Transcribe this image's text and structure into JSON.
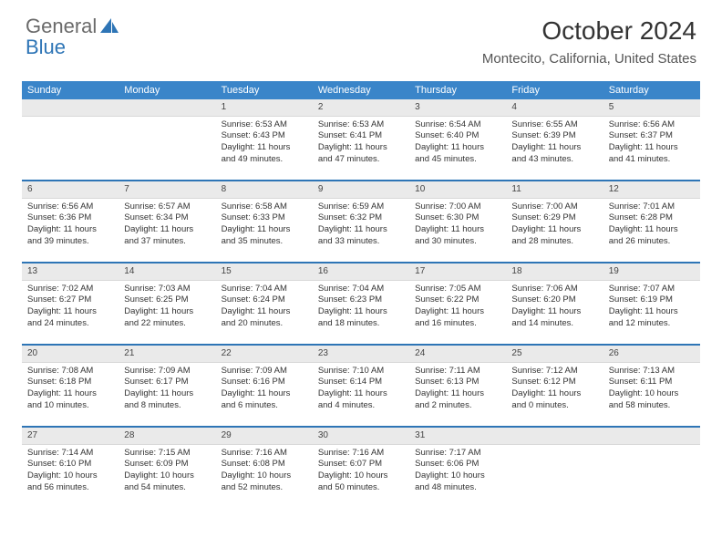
{
  "logo": {
    "grey": "General",
    "blue": "Blue"
  },
  "title": "October 2024",
  "location": "Montecito, California, United States",
  "colors": {
    "header_bg": "#3a85c9",
    "header_text": "#ffffff",
    "week_border": "#2e75b6",
    "daynum_bg": "#eaeaea",
    "body_text": "#333333",
    "logo_grey": "#6a6a6a",
    "logo_blue": "#2e75b6"
  },
  "day_names": [
    "Sunday",
    "Monday",
    "Tuesday",
    "Wednesday",
    "Thursday",
    "Friday",
    "Saturday"
  ],
  "weeks": [
    [
      null,
      null,
      {
        "n": "1",
        "sr": "Sunrise: 6:53 AM",
        "ss": "Sunset: 6:43 PM",
        "dl": "Daylight: 11 hours and 49 minutes."
      },
      {
        "n": "2",
        "sr": "Sunrise: 6:53 AM",
        "ss": "Sunset: 6:41 PM",
        "dl": "Daylight: 11 hours and 47 minutes."
      },
      {
        "n": "3",
        "sr": "Sunrise: 6:54 AM",
        "ss": "Sunset: 6:40 PM",
        "dl": "Daylight: 11 hours and 45 minutes."
      },
      {
        "n": "4",
        "sr": "Sunrise: 6:55 AM",
        "ss": "Sunset: 6:39 PM",
        "dl": "Daylight: 11 hours and 43 minutes."
      },
      {
        "n": "5",
        "sr": "Sunrise: 6:56 AM",
        "ss": "Sunset: 6:37 PM",
        "dl": "Daylight: 11 hours and 41 minutes."
      }
    ],
    [
      {
        "n": "6",
        "sr": "Sunrise: 6:56 AM",
        "ss": "Sunset: 6:36 PM",
        "dl": "Daylight: 11 hours and 39 minutes."
      },
      {
        "n": "7",
        "sr": "Sunrise: 6:57 AM",
        "ss": "Sunset: 6:34 PM",
        "dl": "Daylight: 11 hours and 37 minutes."
      },
      {
        "n": "8",
        "sr": "Sunrise: 6:58 AM",
        "ss": "Sunset: 6:33 PM",
        "dl": "Daylight: 11 hours and 35 minutes."
      },
      {
        "n": "9",
        "sr": "Sunrise: 6:59 AM",
        "ss": "Sunset: 6:32 PM",
        "dl": "Daylight: 11 hours and 33 minutes."
      },
      {
        "n": "10",
        "sr": "Sunrise: 7:00 AM",
        "ss": "Sunset: 6:30 PM",
        "dl": "Daylight: 11 hours and 30 minutes."
      },
      {
        "n": "11",
        "sr": "Sunrise: 7:00 AM",
        "ss": "Sunset: 6:29 PM",
        "dl": "Daylight: 11 hours and 28 minutes."
      },
      {
        "n": "12",
        "sr": "Sunrise: 7:01 AM",
        "ss": "Sunset: 6:28 PM",
        "dl": "Daylight: 11 hours and 26 minutes."
      }
    ],
    [
      {
        "n": "13",
        "sr": "Sunrise: 7:02 AM",
        "ss": "Sunset: 6:27 PM",
        "dl": "Daylight: 11 hours and 24 minutes."
      },
      {
        "n": "14",
        "sr": "Sunrise: 7:03 AM",
        "ss": "Sunset: 6:25 PM",
        "dl": "Daylight: 11 hours and 22 minutes."
      },
      {
        "n": "15",
        "sr": "Sunrise: 7:04 AM",
        "ss": "Sunset: 6:24 PM",
        "dl": "Daylight: 11 hours and 20 minutes."
      },
      {
        "n": "16",
        "sr": "Sunrise: 7:04 AM",
        "ss": "Sunset: 6:23 PM",
        "dl": "Daylight: 11 hours and 18 minutes."
      },
      {
        "n": "17",
        "sr": "Sunrise: 7:05 AM",
        "ss": "Sunset: 6:22 PM",
        "dl": "Daylight: 11 hours and 16 minutes."
      },
      {
        "n": "18",
        "sr": "Sunrise: 7:06 AM",
        "ss": "Sunset: 6:20 PM",
        "dl": "Daylight: 11 hours and 14 minutes."
      },
      {
        "n": "19",
        "sr": "Sunrise: 7:07 AM",
        "ss": "Sunset: 6:19 PM",
        "dl": "Daylight: 11 hours and 12 minutes."
      }
    ],
    [
      {
        "n": "20",
        "sr": "Sunrise: 7:08 AM",
        "ss": "Sunset: 6:18 PM",
        "dl": "Daylight: 11 hours and 10 minutes."
      },
      {
        "n": "21",
        "sr": "Sunrise: 7:09 AM",
        "ss": "Sunset: 6:17 PM",
        "dl": "Daylight: 11 hours and 8 minutes."
      },
      {
        "n": "22",
        "sr": "Sunrise: 7:09 AM",
        "ss": "Sunset: 6:16 PM",
        "dl": "Daylight: 11 hours and 6 minutes."
      },
      {
        "n": "23",
        "sr": "Sunrise: 7:10 AM",
        "ss": "Sunset: 6:14 PM",
        "dl": "Daylight: 11 hours and 4 minutes."
      },
      {
        "n": "24",
        "sr": "Sunrise: 7:11 AM",
        "ss": "Sunset: 6:13 PM",
        "dl": "Daylight: 11 hours and 2 minutes."
      },
      {
        "n": "25",
        "sr": "Sunrise: 7:12 AM",
        "ss": "Sunset: 6:12 PM",
        "dl": "Daylight: 11 hours and 0 minutes."
      },
      {
        "n": "26",
        "sr": "Sunrise: 7:13 AM",
        "ss": "Sunset: 6:11 PM",
        "dl": "Daylight: 10 hours and 58 minutes."
      }
    ],
    [
      {
        "n": "27",
        "sr": "Sunrise: 7:14 AM",
        "ss": "Sunset: 6:10 PM",
        "dl": "Daylight: 10 hours and 56 minutes."
      },
      {
        "n": "28",
        "sr": "Sunrise: 7:15 AM",
        "ss": "Sunset: 6:09 PM",
        "dl": "Daylight: 10 hours and 54 minutes."
      },
      {
        "n": "29",
        "sr": "Sunrise: 7:16 AM",
        "ss": "Sunset: 6:08 PM",
        "dl": "Daylight: 10 hours and 52 minutes."
      },
      {
        "n": "30",
        "sr": "Sunrise: 7:16 AM",
        "ss": "Sunset: 6:07 PM",
        "dl": "Daylight: 10 hours and 50 minutes."
      },
      {
        "n": "31",
        "sr": "Sunrise: 7:17 AM",
        "ss": "Sunset: 6:06 PM",
        "dl": "Daylight: 10 hours and 48 minutes."
      },
      null,
      null
    ]
  ]
}
